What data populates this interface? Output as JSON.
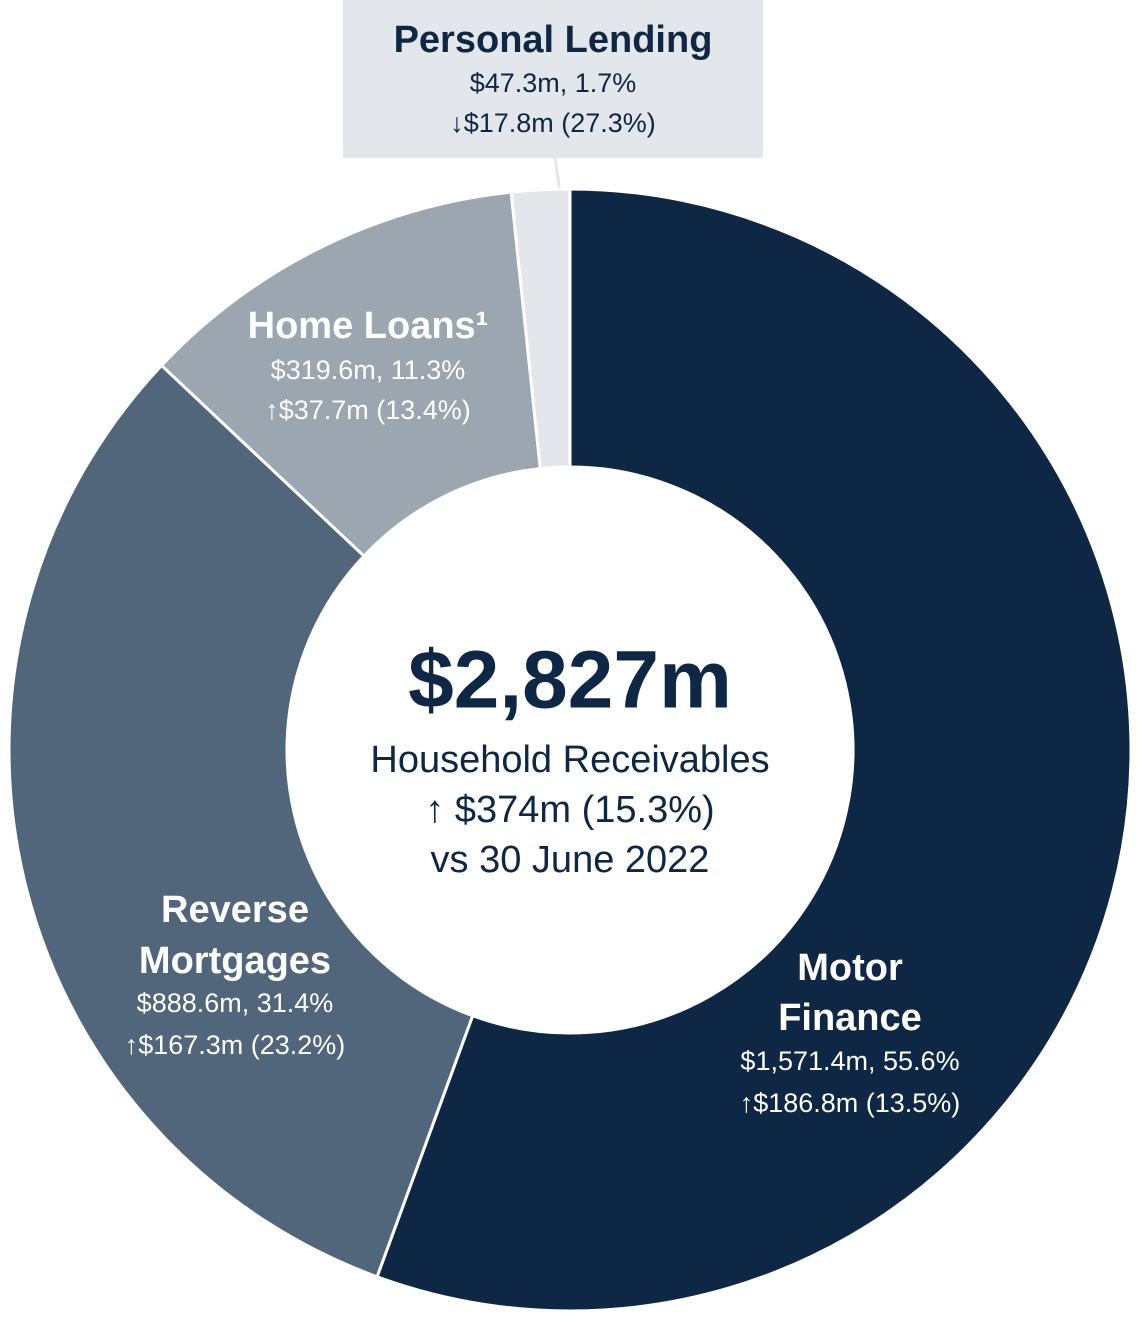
{
  "chart_data": {
    "type": "pie",
    "categories": [
      "Motor Finance",
      "Reverse Mortgages",
      "Home Loans¹",
      "Personal Lending"
    ],
    "values": [
      1571.4,
      888.6,
      319.6,
      47.3
    ],
    "value_labels": [
      "$1,571.4m, 55.6%",
      "$888.6m, 31.4%",
      "$319.6m, 11.3%",
      "$47.3m, 1.7%"
    ],
    "change_labels": [
      "↑$186.8m (13.5%)",
      "↑$167.3m (23.2%)",
      "↑$37.7m (13.4%)",
      "↓$17.8m (27.3%)"
    ],
    "colors": [
      "#0d2744",
      "#52667b",
      "#9ba6b1",
      "#e3e7eb"
    ],
    "center_total": "$2,827m",
    "center_subtitle": "Household Receivables",
    "center_change": "↑ $374m (15.3%)",
    "center_note": "vs 30 June 2022"
  }
}
